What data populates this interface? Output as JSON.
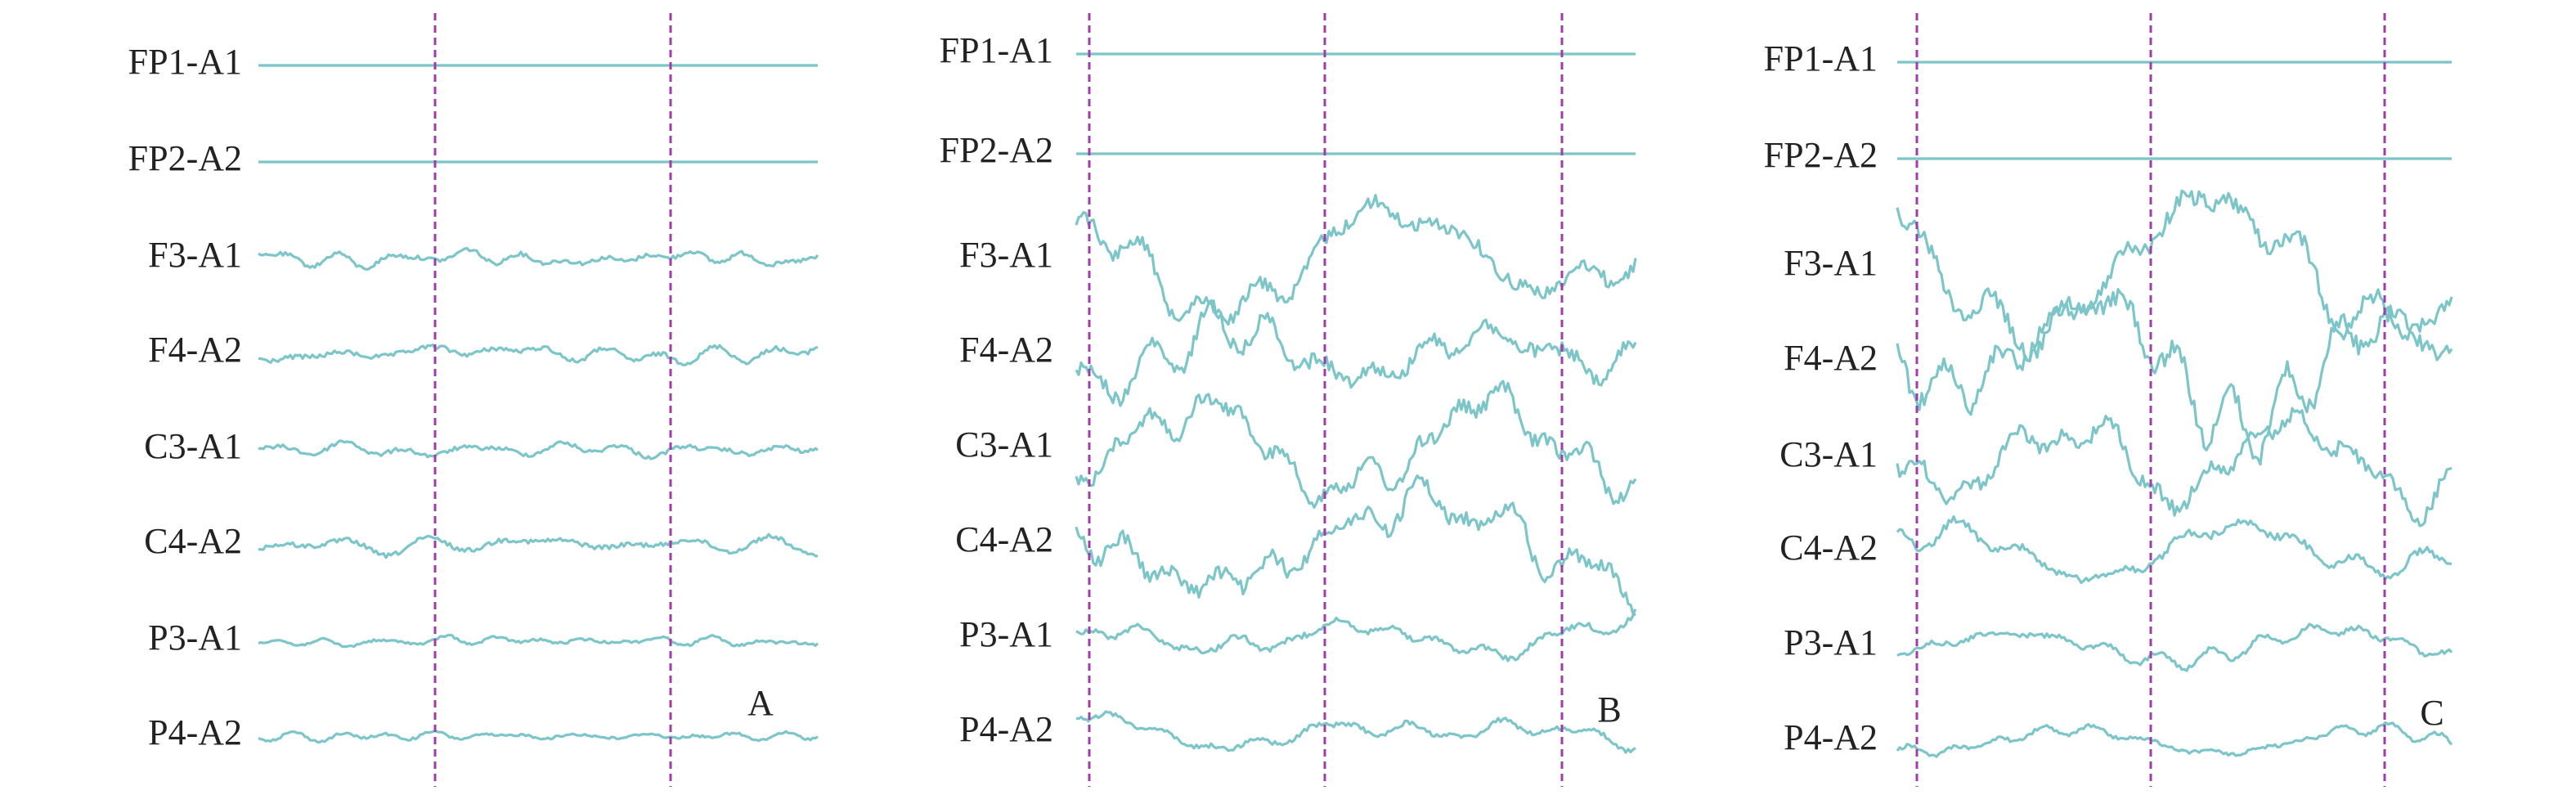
{
  "panels": [
    {
      "label": "A",
      "channels": [
        "FP1-A1",
        "FP2-A2",
        "F3-A1",
        "F4-A2",
        "C3-A1",
        "C4-A2",
        "P3-A1",
        "P4-A2"
      ]
    },
    {
      "label": "B",
      "channels": [
        "FP1-A1",
        "FP2-A2",
        "F3-A1",
        "F4-A2",
        "C3-A1",
        "C4-A2",
        "P3-A1",
        "P4-A2"
      ]
    },
    {
      "label": "C",
      "channels": [
        "FP1-A1",
        "FP2-A2",
        "F3-A1",
        "F4-A2",
        "C3-A1",
        "C4-A2",
        "P3-A1",
        "P4-A2"
      ]
    }
  ]
}
